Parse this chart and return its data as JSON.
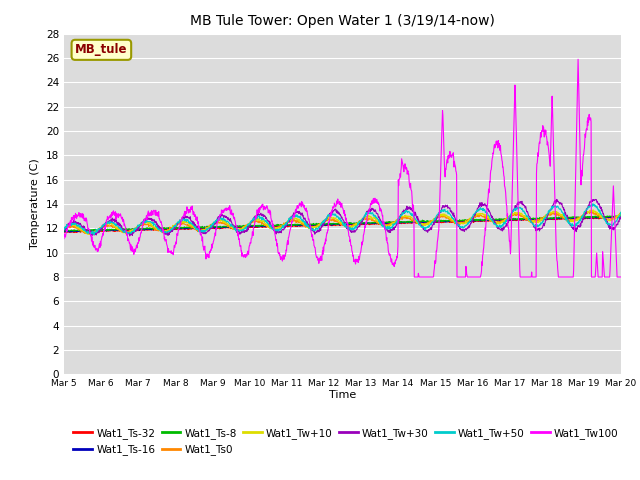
{
  "title": "MB Tule Tower: Open Water 1 (3/19/14-now)",
  "xlabel": "Time",
  "ylabel": "Temperature (C)",
  "ylim": [
    0,
    28
  ],
  "yticks": [
    0,
    2,
    4,
    6,
    8,
    10,
    12,
    14,
    16,
    18,
    20,
    22,
    24,
    26,
    28
  ],
  "legend_label": "MB_tule",
  "series_colors": {
    "Wat1_Ts-32": "#ff0000",
    "Wat1_Ts-16": "#0000bb",
    "Wat1_Ts-8": "#00bb00",
    "Wat1_Ts0": "#ff8800",
    "Wat1_Tw+10": "#dddd00",
    "Wat1_Tw+30": "#9900bb",
    "Wat1_Tw+50": "#00cccc",
    "Wat1_Tw100": "#ff00ff"
  },
  "plot_bg": "#dcdcdc",
  "grid_color": "#ffffff"
}
